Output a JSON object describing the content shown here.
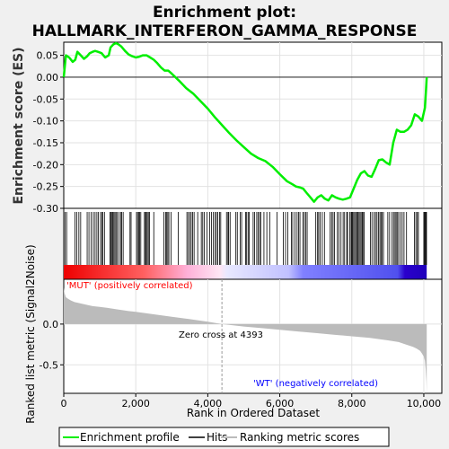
{
  "title_line1": "Enrichment plot:",
  "title_line2": "HALLMARK_INTERFERON_GAMMA_RESPONSE",
  "colors": {
    "background": "#f0f0f0",
    "es_line": "#00ee00",
    "hits": "#000000",
    "metric_fill": "#bbbbbb",
    "pos_label": "#ff0000",
    "neg_label": "#0000ff",
    "zero_cross_line": "#999999"
  },
  "chart_data": [
    {
      "type": "line",
      "panel": "enrichment-profile",
      "ylabel": "Enrichment score (ES)",
      "xlim": [
        0,
        10500
      ],
      "ylim": [
        -0.3,
        0.08
      ],
      "yticks": [
        0.05,
        0.0,
        -0.05,
        -0.1,
        -0.15,
        -0.2,
        -0.25,
        -0.3
      ],
      "ytick_labels": [
        "0.05",
        "0.00",
        "-0.05",
        "-0.10",
        "-0.15",
        "-0.20",
        "-0.25",
        "-0.30"
      ],
      "grid": true,
      "series": [
        {
          "name": "Enrichment profile",
          "x": [
            0,
            60,
            150,
            250,
            320,
            380,
            450,
            560,
            650,
            720,
            800,
            870,
            950,
            1050,
            1150,
            1250,
            1300,
            1380,
            1450,
            1520,
            1600,
            1700,
            1800,
            1900,
            2000,
            2100,
            2200,
            2300,
            2400,
            2500,
            2600,
            2700,
            2800,
            2900,
            3000,
            3200,
            3400,
            3600,
            3800,
            4000,
            4200,
            4400,
            4600,
            4800,
            5000,
            5200,
            5400,
            5600,
            5800,
            6000,
            6200,
            6350,
            6450,
            6550,
            6650,
            6750,
            6850,
            6950,
            7050,
            7150,
            7250,
            7350,
            7450,
            7550,
            7650,
            7750,
            7850,
            7950,
            8050,
            8150,
            8250,
            8350,
            8450,
            8550,
            8650,
            8750,
            8850,
            8950,
            9050,
            9150,
            9250,
            9350,
            9450,
            9550,
            9650,
            9750,
            9850,
            9950,
            10030,
            10060,
            10080
          ],
          "y": [
            0.0,
            0.05,
            0.045,
            0.035,
            0.04,
            0.058,
            0.052,
            0.042,
            0.048,
            0.055,
            0.058,
            0.06,
            0.058,
            0.055,
            0.045,
            0.05,
            0.068,
            0.075,
            0.078,
            0.075,
            0.07,
            0.06,
            0.052,
            0.048,
            0.045,
            0.047,
            0.05,
            0.05,
            0.045,
            0.04,
            0.032,
            0.022,
            0.015,
            0.015,
            0.008,
            -0.008,
            -0.025,
            -0.038,
            -0.055,
            -0.072,
            -0.092,
            -0.11,
            -0.128,
            -0.145,
            -0.16,
            -0.175,
            -0.185,
            -0.192,
            -0.205,
            -0.222,
            -0.238,
            -0.245,
            -0.25,
            -0.252,
            -0.255,
            -0.265,
            -0.275,
            -0.285,
            -0.275,
            -0.27,
            -0.278,
            -0.282,
            -0.27,
            -0.275,
            -0.278,
            -0.28,
            -0.278,
            -0.275,
            -0.255,
            -0.235,
            -0.22,
            -0.215,
            -0.225,
            -0.228,
            -0.21,
            -0.19,
            -0.188,
            -0.195,
            -0.2,
            -0.15,
            -0.12,
            -0.125,
            -0.125,
            -0.12,
            -0.11,
            -0.085,
            -0.09,
            -0.1,
            -0.07,
            -0.03,
            0.0
          ]
        }
      ]
    },
    {
      "type": "scatter",
      "panel": "hits",
      "name": "Hits",
      "positions": [
        40,
        80,
        310,
        360,
        420,
        470,
        650,
        700,
        760,
        820,
        870,
        920,
        960,
        1020,
        1060,
        1080,
        1130,
        1280,
        1310,
        1340,
        1360,
        1390,
        1420,
        1450,
        1480,
        1530,
        1580,
        1610,
        1650,
        1840,
        1870,
        2020,
        2050,
        2080,
        2110,
        2140,
        2240,
        2270,
        2290,
        2320,
        2350,
        2380,
        2500,
        2780,
        2830,
        2860,
        2890,
        2920,
        2980,
        3180,
        3420,
        3460,
        3500,
        3540,
        3580,
        3620,
        3720,
        3820,
        3860,
        3900,
        3980,
        4050,
        4100,
        4150,
        4200,
        4240,
        4280,
        4330,
        4360,
        4520,
        4560,
        4580,
        4620,
        4780,
        4820,
        4900,
        4940,
        5050,
        5080,
        5120,
        5150,
        5260,
        5300,
        5360,
        5400,
        5440,
        5470,
        5560,
        5640,
        5720,
        5920,
        6100,
        6160,
        6220,
        6320,
        6360,
        6420,
        6480,
        6520,
        6560,
        6640,
        6680,
        6720,
        6760,
        7000,
        7050,
        7080,
        7120,
        7180,
        7240,
        7400,
        7440,
        7480,
        7520,
        7600,
        7640,
        7700,
        7760,
        7800,
        7860,
        7880,
        7940,
        7980,
        8000,
        8020,
        8050,
        8080,
        8110,
        8140,
        8170,
        8200,
        8230,
        8260,
        8290,
        8310,
        8340,
        8520,
        8560,
        8620,
        8660,
        8700,
        8740,
        8780,
        8810,
        8840,
        8880,
        9000,
        9050,
        9120,
        9160,
        9200,
        9230,
        9260,
        9300,
        9350,
        9400,
        9450,
        9520,
        9740,
        9780,
        9820,
        9850,
        10000,
        10020,
        10040,
        10060,
        10075
      ]
    },
    {
      "type": "area",
      "panel": "ranked-list-metric",
      "name": "Ranking metric scores",
      "ylabel": "Ranked list metric (Signal2Noise)",
      "xlabel": "Rank in Ordered Dataset",
      "xlim": [
        0,
        10500
      ],
      "ylim": [
        -0.85,
        0.55
      ],
      "xticks": [
        0,
        2000,
        4000,
        6000,
        8000,
        10000
      ],
      "xtick_labels": [
        "0",
        "2,000",
        "4,000",
        "6,000",
        "8,000",
        "10,000"
      ],
      "yticks": [
        0.0,
        -0.5
      ],
      "ytick_labels": [
        "0.0",
        "-0.5"
      ],
      "x": [
        0,
        20,
        60,
        120,
        200,
        300,
        400,
        600,
        800,
        1000,
        1200,
        1500,
        1800,
        2000,
        2500,
        3000,
        3500,
        4000,
        4393,
        5000,
        5500,
        6000,
        6500,
        7000,
        7500,
        8000,
        8500,
        9000,
        9300,
        9500,
        9700,
        9800,
        9900,
        9950,
        10000,
        10030,
        10050,
        10070,
        10080
      ],
      "values": [
        0.45,
        0.38,
        0.33,
        0.31,
        0.29,
        0.27,
        0.26,
        0.24,
        0.22,
        0.21,
        0.2,
        0.18,
        0.16,
        0.15,
        0.12,
        0.09,
        0.06,
        0.03,
        0.0,
        -0.03,
        -0.05,
        -0.07,
        -0.09,
        -0.11,
        -0.13,
        -0.15,
        -0.17,
        -0.2,
        -0.22,
        -0.25,
        -0.28,
        -0.3,
        -0.33,
        -0.36,
        -0.4,
        -0.45,
        -0.55,
        -0.7,
        -0.85
      ]
    }
  ],
  "annotations": {
    "pos_label": "'MUT' (positively correlated)",
    "neg_label": "'WT' (negatively correlated)",
    "zero_cross": "Zero cross at 4393",
    "zero_cross_rank": 4393
  },
  "legend": [
    {
      "label": "Enrichment profile",
      "color": "#00ee00"
    },
    {
      "label": "Hits",
      "color": "#000000"
    },
    {
      "label": "Ranking metric scores",
      "color": "#bbbbbb"
    }
  ]
}
